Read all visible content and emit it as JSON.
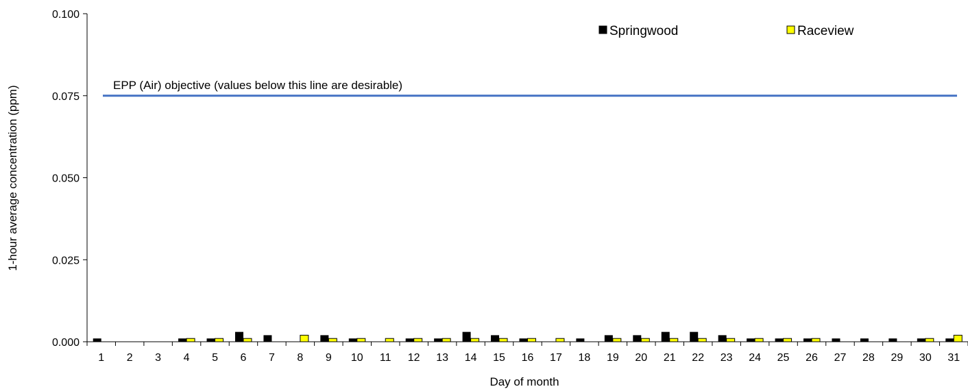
{
  "chart_data": {
    "type": "bar",
    "title": "",
    "xlabel": "Day of month",
    "ylabel": "1-hour average concentration (ppm)",
    "ylim": [
      0,
      0.1
    ],
    "yticks": [
      "0.000",
      "0.025",
      "0.050",
      "0.075",
      "0.100"
    ],
    "categories": [
      "1",
      "2",
      "3",
      "4",
      "5",
      "6",
      "7",
      "8",
      "9",
      "10",
      "11",
      "12",
      "13",
      "14",
      "15",
      "16",
      "17",
      "18",
      "19",
      "20",
      "21",
      "22",
      "23",
      "24",
      "25",
      "26",
      "27",
      "28",
      "29",
      "30",
      "31"
    ],
    "series": [
      {
        "name": "Springwood",
        "color": "#000000",
        "values": [
          0.001,
          0,
          0,
          0.001,
          0.001,
          0.003,
          0.002,
          0,
          0.002,
          0.001,
          0,
          0.001,
          0.001,
          0.003,
          0.002,
          0.001,
          0,
          0.001,
          0.002,
          0.002,
          0.003,
          0.003,
          0.002,
          0.001,
          0.001,
          0.001,
          0.001,
          0.001,
          0.001,
          0.001,
          0.001
        ]
      },
      {
        "name": "Raceview",
        "color": "#ffff00",
        "values": [
          0,
          0,
          0,
          0.001,
          0.001,
          0.001,
          0,
          0.002,
          0.001,
          0.001,
          0.001,
          0.001,
          0.001,
          0.001,
          0.001,
          0.001,
          0.001,
          0,
          0.001,
          0.001,
          0.001,
          0.001,
          0.001,
          0.001,
          0.001,
          0.001,
          0,
          0,
          0,
          0.001,
          0.002
        ]
      }
    ],
    "reference_line": {
      "value": 0.075,
      "label": "EPP (Air) objective (values below this line are desirable)",
      "color": "#4472c4"
    },
    "legend_position": "top-right",
    "grid": false
  }
}
